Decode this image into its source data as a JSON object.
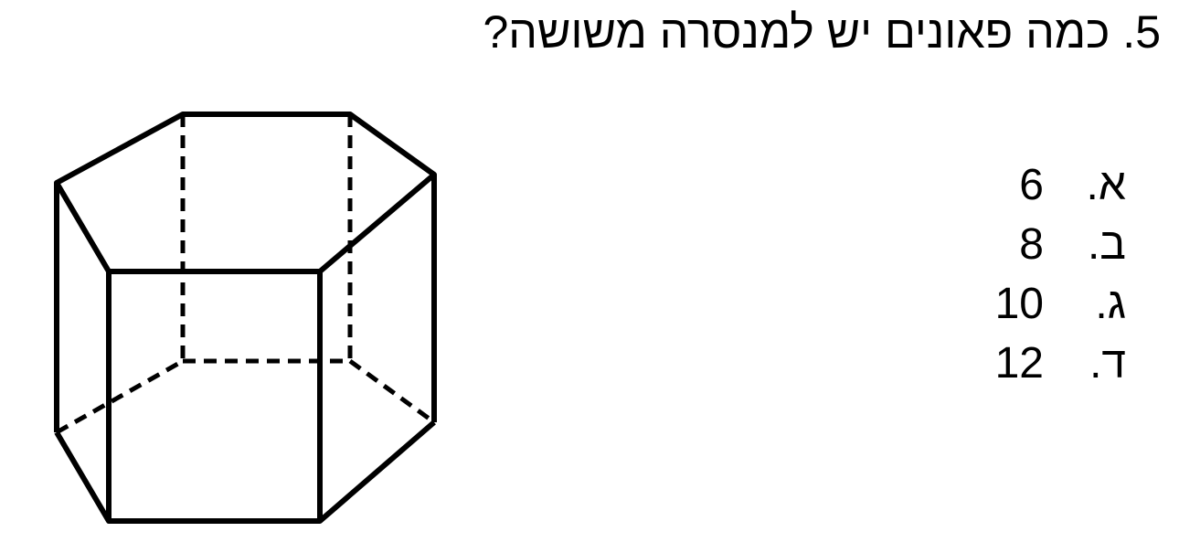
{
  "question": {
    "text": "5. כמה פאונים יש למנסרה משושה?"
  },
  "options": [
    {
      "letter": "א.",
      "value": "6"
    },
    {
      "letter": "ב.",
      "value": "8"
    },
    {
      "letter": "ג.",
      "value": "10"
    },
    {
      "letter": "ד.",
      "value": "12"
    }
  ]
}
